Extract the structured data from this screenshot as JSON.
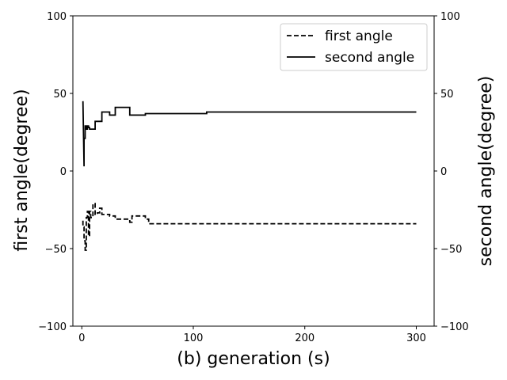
{
  "chart_data": {
    "type": "line",
    "xlabel": "(b) generation (s)",
    "ylabel_left": "first angle(degree)",
    "ylabel_right": "second angle(degree)",
    "xlim": [
      -8,
      316
    ],
    "ylim": [
      -100,
      100
    ],
    "xticks": [
      0,
      100,
      200,
      300
    ],
    "yticks": [
      -100,
      -50,
      0,
      50,
      100
    ],
    "ytick_labels": [
      "−100",
      "−50",
      "0",
      "50",
      "100"
    ],
    "xtick_labels": [
      "0",
      "100",
      "200",
      "300"
    ],
    "legend_position": "top-right",
    "series": [
      {
        "name": "first angle",
        "style": "dashed",
        "color": "#000000",
        "x": [
          1,
          1,
          2,
          2,
          3,
          3,
          4,
          4,
          5,
          5,
          6,
          6,
          7,
          7,
          8,
          8,
          10,
          10,
          12,
          12,
          14,
          14,
          16,
          16,
          18,
          18,
          20,
          20,
          25,
          25,
          30,
          30,
          35,
          35,
          43,
          43,
          45,
          45,
          57,
          57,
          60,
          60,
          300
        ],
        "y": [
          -32,
          -36,
          -36,
          -45,
          -45,
          -51,
          -51,
          -30,
          -30,
          -26,
          -26,
          -42,
          -42,
          -26,
          -26,
          -30,
          -30,
          -21,
          -21,
          -28,
          -28,
          -27,
          -27,
          -24,
          -24,
          -28,
          -28,
          -28,
          -28,
          -29,
          -29,
          -31,
          -31,
          -31,
          -31,
          -33,
          -33,
          -29,
          -29,
          -31,
          -31,
          -34,
          -34
        ]
      },
      {
        "name": "second angle",
        "style": "solid",
        "color": "#000000",
        "x": [
          1,
          2,
          2,
          3,
          3,
          4,
          4,
          5,
          5,
          6,
          6,
          7,
          7,
          8,
          8,
          12,
          12,
          18,
          18,
          25,
          25,
          30,
          30,
          43,
          43,
          45,
          45,
          57,
          57,
          60,
          60,
          112,
          112,
          300
        ],
        "y": [
          45,
          3,
          21,
          21,
          29,
          29,
          27,
          27,
          29,
          29,
          28,
          28,
          27,
          27,
          27,
          27,
          32,
          32,
          38,
          38,
          36,
          36,
          41,
          41,
          36,
          36,
          36,
          36,
          37,
          37,
          37,
          37,
          38,
          38
        ]
      }
    ]
  }
}
